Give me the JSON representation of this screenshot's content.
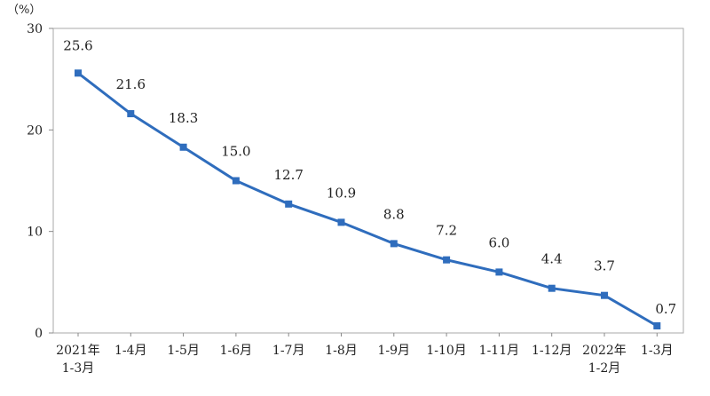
{
  "chart_data": {
    "type": "line",
    "unit_label": "（%）",
    "categories": [
      [
        "2021年",
        "1-3月"
      ],
      [
        "1-4月"
      ],
      [
        "1-5月"
      ],
      [
        "1-6月"
      ],
      [
        "1-7月"
      ],
      [
        "1-8月"
      ],
      [
        "1-9月"
      ],
      [
        "1-10月"
      ],
      [
        "1-11月"
      ],
      [
        "1-12月"
      ],
      [
        "2022年",
        "1-2月"
      ],
      [
        "1-3月"
      ]
    ],
    "values": [
      25.6,
      21.6,
      18.3,
      15.0,
      12.7,
      10.9,
      8.8,
      7.2,
      6.0,
      4.4,
      3.7,
      0.7
    ],
    "value_labels": [
      "25.6",
      "21.6",
      "18.3",
      "15.0",
      "12.7",
      "10.9",
      "8.8",
      "7.2",
      "6.0",
      "4.4",
      "3.7",
      "0.7"
    ],
    "y_ticks": [
      "0",
      "10",
      "20",
      "30"
    ],
    "ylim": [
      0,
      30
    ],
    "line_color": "#2f6dbd",
    "grid": false,
    "legend": false
  }
}
